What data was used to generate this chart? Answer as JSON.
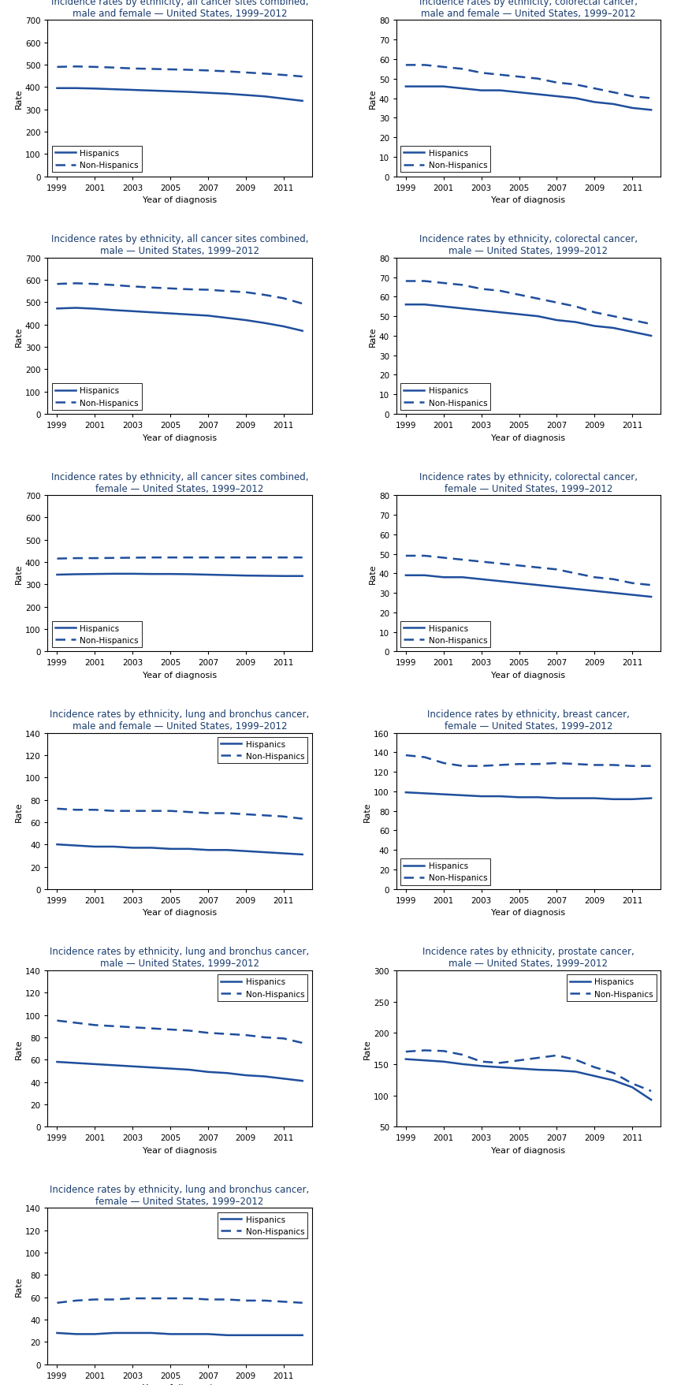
{
  "years": [
    1999,
    2000,
    2001,
    2002,
    2003,
    2004,
    2005,
    2006,
    2007,
    2008,
    2009,
    2010,
    2011,
    2012
  ],
  "charts": [
    {
      "title": "Incidence rates by ethnicity, all cancer sites combined,\nmale and female — United States, 1999–2012",
      "ylim": [
        0,
        700
      ],
      "yticks": [
        0,
        100,
        200,
        300,
        400,
        500,
        600,
        700
      ],
      "hispanic": [
        395,
        395,
        393,
        390,
        387,
        384,
        381,
        378,
        374,
        370,
        364,
        358,
        348,
        338
      ],
      "non_hispanic": [
        490,
        492,
        490,
        487,
        483,
        481,
        479,
        477,
        474,
        470,
        465,
        460,
        454,
        447
      ],
      "legend_loc": "lower left",
      "row": 0,
      "col": 0
    },
    {
      "title": "Incidence rates by ethnicity, colorectal cancer,\nmale and female — United States, 1999–2012",
      "ylim": [
        0,
        80
      ],
      "yticks": [
        0,
        10,
        20,
        30,
        40,
        50,
        60,
        70,
        80
      ],
      "hispanic": [
        46,
        46,
        46,
        45,
        44,
        44,
        43,
        42,
        41,
        40,
        38,
        37,
        35,
        34
      ],
      "non_hispanic": [
        57,
        57,
        56,
        55,
        53,
        52,
        51,
        50,
        48,
        47,
        45,
        43,
        41,
        40
      ],
      "legend_loc": "lower left",
      "row": 0,
      "col": 1
    },
    {
      "title": "Incidence rates by ethnicity, all cancer sites combined,\nmale — United States, 1999–2012",
      "ylim": [
        0,
        700
      ],
      "yticks": [
        0,
        100,
        200,
        300,
        400,
        500,
        600,
        700
      ],
      "hispanic": [
        472,
        475,
        471,
        465,
        460,
        455,
        450,
        445,
        440,
        430,
        420,
        407,
        392,
        372
      ],
      "non_hispanic": [
        582,
        585,
        582,
        577,
        571,
        566,
        562,
        558,
        556,
        550,
        545,
        533,
        518,
        494
      ],
      "legend_loc": "lower left",
      "row": 1,
      "col": 0
    },
    {
      "title": "Incidence rates by ethnicity, colorectal cancer,\nmale — United States, 1999–2012",
      "ylim": [
        0,
        80
      ],
      "yticks": [
        0,
        10,
        20,
        30,
        40,
        50,
        60,
        70,
        80
      ],
      "hispanic": [
        56,
        56,
        55,
        54,
        53,
        52,
        51,
        50,
        48,
        47,
        45,
        44,
        42,
        40
      ],
      "non_hispanic": [
        68,
        68,
        67,
        66,
        64,
        63,
        61,
        59,
        57,
        55,
        52,
        50,
        48,
        46
      ],
      "legend_loc": "lower left",
      "row": 1,
      "col": 1
    },
    {
      "title": "Incidence rates by ethnicity, all cancer sites combined,\nfemale — United States, 1999–2012",
      "ylim": [
        0,
        700
      ],
      "yticks": [
        0,
        100,
        200,
        300,
        400,
        500,
        600,
        700
      ],
      "hispanic": [
        344,
        346,
        347,
        348,
        348,
        347,
        347,
        346,
        344,
        342,
        340,
        339,
        338,
        338
      ],
      "non_hispanic": [
        416,
        418,
        418,
        419,
        420,
        421,
        421,
        421,
        421,
        421,
        421,
        421,
        421,
        421
      ],
      "legend_loc": "lower left",
      "row": 2,
      "col": 0
    },
    {
      "title": "Incidence rates by ethnicity, colorectal cancer,\nfemale — United States, 1999–2012",
      "ylim": [
        0,
        80
      ],
      "yticks": [
        0,
        10,
        20,
        30,
        40,
        50,
        60,
        70,
        80
      ],
      "hispanic": [
        39,
        39,
        38,
        38,
        37,
        36,
        35,
        34,
        33,
        32,
        31,
        30,
        29,
        28
      ],
      "non_hispanic": [
        49,
        49,
        48,
        47,
        46,
        45,
        44,
        43,
        42,
        40,
        38,
        37,
        35,
        34
      ],
      "legend_loc": "lower left",
      "row": 2,
      "col": 1
    },
    {
      "title": "Incidence rates by ethnicity, lung and bronchus cancer,\nmale and female — United States, 1999–2012",
      "ylim": [
        0,
        140
      ],
      "yticks": [
        0,
        20,
        40,
        60,
        80,
        100,
        120,
        140
      ],
      "hispanic": [
        40,
        39,
        38,
        38,
        37,
        37,
        36,
        36,
        35,
        35,
        34,
        33,
        32,
        31
      ],
      "non_hispanic": [
        72,
        71,
        71,
        70,
        70,
        70,
        70,
        69,
        68,
        68,
        67,
        66,
        65,
        63
      ],
      "legend_loc": "upper right",
      "row": 3,
      "col": 0
    },
    {
      "title": "Incidence rates by ethnicity, breast cancer,\nfemale — United States, 1999–2012",
      "ylim": [
        0,
        160
      ],
      "yticks": [
        0,
        20,
        40,
        60,
        80,
        100,
        120,
        140,
        160
      ],
      "hispanic": [
        99,
        98,
        97,
        96,
        95,
        95,
        94,
        94,
        93,
        93,
        93,
        92,
        92,
        93
      ],
      "non_hispanic": [
        137,
        135,
        129,
        126,
        126,
        127,
        128,
        128,
        129,
        128,
        127,
        127,
        126,
        126
      ],
      "legend_loc": "lower left",
      "row": 3,
      "col": 1
    },
    {
      "title": "Incidence rates by ethnicity, lung and bronchus cancer,\nmale — United States, 1999–2012",
      "ylim": [
        0,
        140
      ],
      "yticks": [
        0,
        20,
        40,
        60,
        80,
        100,
        120,
        140
      ],
      "hispanic": [
        58,
        57,
        56,
        55,
        54,
        53,
        52,
        51,
        49,
        48,
        46,
        45,
        43,
        41
      ],
      "non_hispanic": [
        95,
        93,
        91,
        90,
        89,
        88,
        87,
        86,
        84,
        83,
        82,
        80,
        79,
        75
      ],
      "legend_loc": "upper right",
      "row": 4,
      "col": 0
    },
    {
      "title": "Incidence rates by ethnicity, prostate cancer,\nmale — United States, 1999–2012",
      "ylim": [
        50,
        300
      ],
      "yticks": [
        50,
        100,
        150,
        200,
        250,
        300
      ],
      "hispanic": [
        158,
        156,
        154,
        150,
        147,
        145,
        143,
        141,
        140,
        138,
        131,
        124,
        113,
        93
      ],
      "non_hispanic": [
        170,
        172,
        171,
        165,
        154,
        152,
        156,
        160,
        164,
        157,
        145,
        136,
        119,
        107
      ],
      "legend_loc": "upper right",
      "row": 4,
      "col": 1
    },
    {
      "title": "Incidence rates by ethnicity, lung and bronchus cancer,\nfemale — United States, 1999–2012",
      "ylim": [
        0,
        140
      ],
      "yticks": [
        0,
        20,
        40,
        60,
        80,
        100,
        120,
        140
      ],
      "hispanic": [
        28,
        27,
        27,
        28,
        28,
        28,
        27,
        27,
        27,
        26,
        26,
        26,
        26,
        26
      ],
      "non_hispanic": [
        55,
        57,
        58,
        58,
        59,
        59,
        59,
        59,
        58,
        58,
        57,
        57,
        56,
        55
      ],
      "legend_loc": "upper right",
      "row": 5,
      "col": 0
    }
  ],
  "line_color": "#1f4e9c",
  "xlabel": "Year of diagnosis",
  "ylabel": "Rate",
  "xticks": [
    1999,
    2001,
    2003,
    2005,
    2007,
    2009,
    2011
  ],
  "line_width": 1.8,
  "legend_fontsize": 7.5,
  "title_fontsize": 8.5,
  "axis_fontsize": 8.0,
  "tick_fontsize": 7.5
}
